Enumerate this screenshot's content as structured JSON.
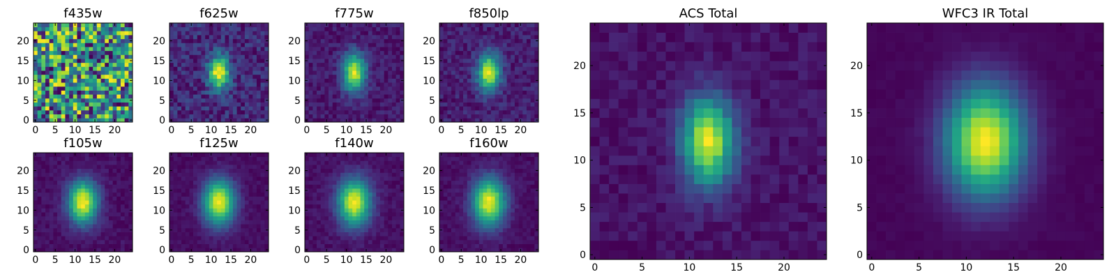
{
  "colormap": "viridis",
  "chart_data": [
    {
      "type": "heatmap",
      "title": "f435w",
      "band": "f435w",
      "pattern": "noise",
      "grid": false,
      "xlim": [
        0,
        25
      ],
      "ylim": [
        0,
        25
      ],
      "xticks": [
        0,
        5,
        10,
        15,
        20
      ],
      "yticks": [
        0,
        5,
        10,
        15,
        20
      ],
      "source_center": [
        12,
        12
      ],
      "source_sigma": [
        0,
        0
      ],
      "source_peak": 0,
      "background_noise": 0.6,
      "seed": 11
    },
    {
      "type": "heatmap",
      "title": "f625w",
      "band": "f625w",
      "pattern": "source",
      "grid": false,
      "xlim": [
        0,
        25
      ],
      "ylim": [
        0,
        25
      ],
      "xticks": [
        0,
        5,
        10,
        15,
        20
      ],
      "yticks": [
        0,
        5,
        10,
        15,
        20
      ],
      "source_center": [
        12,
        12
      ],
      "source_sigma": [
        1.8,
        3.0
      ],
      "source_peak": 1.0,
      "background_noise": 0.28,
      "seed": 23
    },
    {
      "type": "heatmap",
      "title": "f775w",
      "band": "f775w",
      "pattern": "source",
      "grid": false,
      "xlim": [
        0,
        25
      ],
      "ylim": [
        0,
        25
      ],
      "xticks": [
        0,
        5,
        10,
        15,
        20
      ],
      "yticks": [
        0,
        5,
        10,
        15,
        20
      ],
      "source_center": [
        12,
        12
      ],
      "source_sigma": [
        2.0,
        3.4
      ],
      "source_peak": 1.0,
      "background_noise": 0.18,
      "seed": 37
    },
    {
      "type": "heatmap",
      "title": "f850lp",
      "band": "f850lp",
      "pattern": "source",
      "grid": false,
      "xlim": [
        0,
        25
      ],
      "ylim": [
        0,
        25
      ],
      "xticks": [
        0,
        5,
        10,
        15,
        20
      ],
      "yticks": [
        0,
        5,
        10,
        15,
        20
      ],
      "source_center": [
        12,
        12
      ],
      "source_sigma": [
        2.0,
        3.3
      ],
      "source_peak": 1.0,
      "background_noise": 0.2,
      "seed": 41
    },
    {
      "type": "heatmap",
      "title": "f105w",
      "band": "f105w",
      "pattern": "source",
      "grid": false,
      "xlim": [
        0,
        25
      ],
      "ylim": [
        0,
        25
      ],
      "xticks": [
        0,
        5,
        10,
        15,
        20
      ],
      "yticks": [
        0,
        5,
        10,
        15,
        20
      ],
      "source_center": [
        12,
        12
      ],
      "source_sigma": [
        2.6,
        3.8
      ],
      "source_peak": 1.0,
      "background_noise": 0.1,
      "seed": 53
    },
    {
      "type": "heatmap",
      "title": "f125w",
      "band": "f125w",
      "pattern": "source",
      "grid": false,
      "xlim": [
        0,
        25
      ],
      "ylim": [
        0,
        25
      ],
      "xticks": [
        0,
        5,
        10,
        15,
        20
      ],
      "yticks": [
        0,
        5,
        10,
        15,
        20
      ],
      "source_center": [
        12,
        12
      ],
      "source_sigma": [
        2.8,
        4.0
      ],
      "source_peak": 1.0,
      "background_noise": 0.08,
      "seed": 61
    },
    {
      "type": "heatmap",
      "title": "f140w",
      "band": "f140w",
      "pattern": "source",
      "grid": false,
      "xlim": [
        0,
        25
      ],
      "ylim": [
        0,
        25
      ],
      "xticks": [
        0,
        5,
        10,
        15,
        20
      ],
      "yticks": [
        0,
        5,
        10,
        15,
        20
      ],
      "source_center": [
        12,
        12
      ],
      "source_sigma": [
        2.9,
        4.1
      ],
      "source_peak": 1.0,
      "background_noise": 0.1,
      "seed": 71
    },
    {
      "type": "heatmap",
      "title": "f160w",
      "band": "f160w",
      "pattern": "source",
      "grid": false,
      "xlim": [
        0,
        25
      ],
      "ylim": [
        0,
        25
      ],
      "xticks": [
        0,
        5,
        10,
        15,
        20
      ],
      "yticks": [
        0,
        5,
        10,
        15,
        20
      ],
      "source_center": [
        12,
        12
      ],
      "source_sigma": [
        2.9,
        4.2
      ],
      "source_peak": 1.0,
      "background_noise": 0.09,
      "seed": 83
    },
    {
      "type": "heatmap",
      "title": "ACS Total",
      "band": "ACS Total",
      "pattern": "source",
      "grid": false,
      "xlim": [
        0,
        25
      ],
      "ylim": [
        0,
        25
      ],
      "xticks": [
        0,
        5,
        10,
        15,
        20
      ],
      "yticks": [
        0,
        5,
        10,
        15,
        20
      ],
      "source_center": [
        12,
        12
      ],
      "source_sigma": [
        1.9,
        3.2
      ],
      "source_peak": 1.0,
      "background_noise": 0.12,
      "seed": 97
    },
    {
      "type": "heatmap",
      "title": "WFC3 IR Total",
      "band": "WFC3 IR Total",
      "pattern": "source",
      "grid": false,
      "xlim": [
        0,
        25
      ],
      "ylim": [
        0,
        25
      ],
      "xticks": [
        0,
        5,
        10,
        15,
        20
      ],
      "yticks": [
        0,
        5,
        10,
        15,
        20
      ],
      "source_center": [
        12,
        12
      ],
      "source_sigma": [
        2.9,
        4.1
      ],
      "source_peak": 1.0,
      "background_noise": 0.03,
      "seed": 101
    }
  ]
}
